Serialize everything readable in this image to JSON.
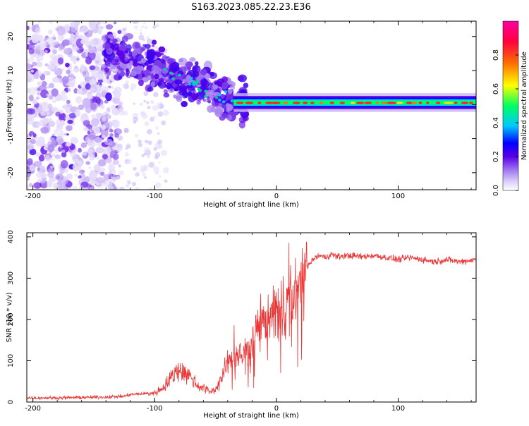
{
  "title": "S163.2023.085.22.23.E36",
  "chart_data": [
    {
      "type": "heatmap",
      "xlabel": "Height of straight line (km)",
      "ylabel": "Frequency (Hz)",
      "xlim": [
        -205,
        164
      ],
      "ylim": [
        -25,
        24.5
      ],
      "xticks": [
        -200,
        -100,
        0,
        100
      ],
      "yticks": [
        -20,
        -10,
        0,
        10,
        20
      ],
      "xtick_labels": [
        "-200",
        "-100",
        "0",
        "100"
      ],
      "ytick_labels": [
        "-20",
        "-10",
        "0",
        "10",
        "20"
      ],
      "colorbar": {
        "label": "Normalized spectral amplitude",
        "range": [
          0,
          1
        ],
        "ticks": [
          0,
          0.2,
          0.4,
          0.6,
          0.8
        ],
        "tick_labels": [
          "0.0",
          "0.2",
          "0.4",
          "0.6",
          "0.8"
        ],
        "colors": [
          "#ffffff",
          "#dcd2fa",
          "#a078f0",
          "#5a00e6",
          "#0000ff",
          "#00c8ff",
          "#00ff60",
          "#ffff00",
          "#ff7000",
          "#ff0040",
          "#ff00a0"
        ]
      },
      "grid": false
    },
    {
      "type": "line",
      "xlabel": "Height of straight line (km)",
      "ylabel": "SNR (10 * v/v)",
      "xlim": [
        -205,
        164
      ],
      "ylim": [
        0,
        410
      ],
      "xticks": [
        -200,
        -100,
        0,
        100
      ],
      "yticks": [
        0,
        100,
        200,
        300,
        400
      ],
      "xtick_labels": [
        "-200",
        "-100",
        "0",
        "100"
      ],
      "ytick_labels": [
        "0",
        "100",
        "200",
        "300",
        "400"
      ],
      "color": "#ee3333",
      "grid": false,
      "series": [
        {
          "x": [
            -205,
            -180,
            -160,
            -140,
            -125,
            -120,
            -110,
            -100,
            -95,
            -90,
            -85,
            -80,
            -75,
            -70,
            -65,
            -60,
            -55,
            -50,
            -45,
            -40,
            -35,
            -30,
            -28,
            -25,
            -22,
            -20,
            -18,
            -15,
            -12,
            -10,
            -8,
            -5,
            -2,
            0,
            2,
            5,
            8,
            10,
            12,
            15,
            18,
            20,
            22,
            25,
            30,
            35,
            40,
            45,
            50,
            60,
            70,
            80,
            90,
            100,
            110,
            120,
            130,
            140,
            150,
            164
          ],
          "y": [
            10,
            10,
            11,
            12,
            14,
            18,
            20,
            22,
            30,
            45,
            65,
            80,
            70,
            60,
            40,
            35,
            25,
            30,
            60,
            90,
            110,
            120,
            100,
            150,
            120,
            160,
            150,
            190,
            200,
            190,
            200,
            220,
            230,
            240,
            190,
            250,
            180,
            320,
            210,
            270,
            260,
            305,
            280,
            325,
            345,
            355,
            350,
            358,
            352,
            355,
            352,
            355,
            350,
            345,
            350,
            345,
            340,
            345,
            340,
            345
          ]
        }
      ]
    }
  ]
}
